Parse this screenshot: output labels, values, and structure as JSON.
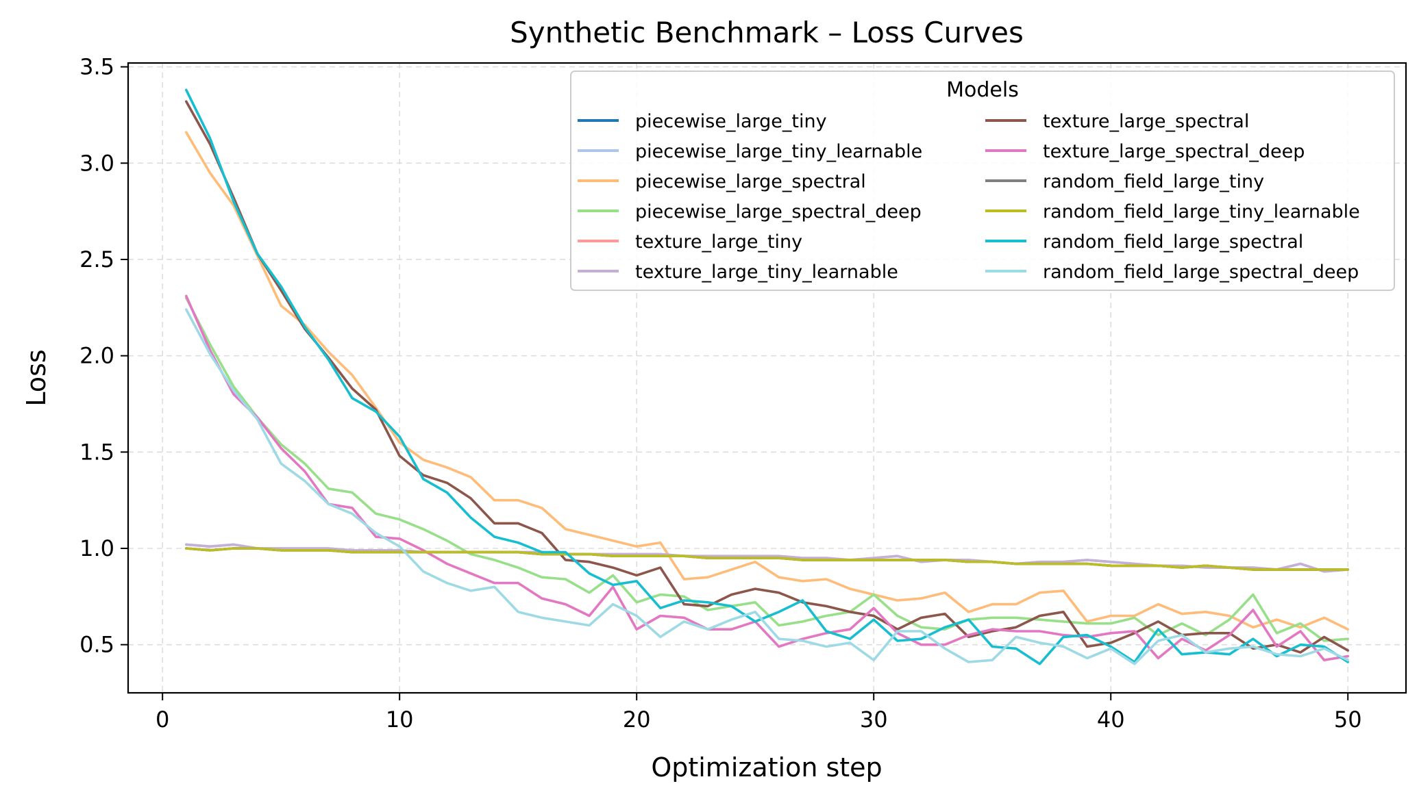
{
  "chart_data": {
    "type": "line",
    "title": "Synthetic Benchmark – Loss Curves",
    "xlabel": "Optimization step",
    "ylabel": "Loss",
    "xlim": [
      -1.45,
      52.45
    ],
    "ylim": [
      0.25,
      3.52
    ],
    "xticks": [
      0,
      10,
      20,
      30,
      40,
      50
    ],
    "yticks": [
      0.5,
      1.0,
      1.5,
      2.0,
      2.5,
      3.0,
      3.5
    ],
    "xtick_labels": [
      "0",
      "10",
      "20",
      "30",
      "40",
      "50"
    ],
    "ytick_labels": [
      "0.5",
      "1.0",
      "1.5",
      "2.0",
      "2.5",
      "3.0",
      "3.5"
    ],
    "grid": true,
    "legend": {
      "title": "Models",
      "location": "top-right",
      "columns": 2
    },
    "x": [
      1,
      2,
      3,
      4,
      5,
      6,
      7,
      8,
      9,
      10,
      11,
      12,
      13,
      14,
      15,
      16,
      17,
      18,
      19,
      20,
      21,
      22,
      23,
      24,
      25,
      26,
      27,
      28,
      29,
      30,
      31,
      32,
      33,
      34,
      35,
      36,
      37,
      38,
      39,
      40,
      41,
      42,
      43,
      44,
      45,
      46,
      47,
      48,
      49,
      50
    ],
    "series": [
      {
        "name": "piecewise_large_tiny",
        "color": "#1f77b4",
        "values": [
          1.0,
          0.99,
          1.0,
          1.0,
          0.99,
          0.99,
          0.99,
          0.98,
          0.98,
          0.98,
          0.98,
          0.98,
          0.98,
          0.98,
          0.98,
          0.97,
          0.97,
          0.97,
          0.96,
          0.96,
          0.96,
          0.96,
          0.95,
          0.95,
          0.95,
          0.95,
          0.94,
          0.94,
          0.94,
          0.94,
          0.94,
          0.94,
          0.94,
          0.93,
          0.93,
          0.92,
          0.92,
          0.92,
          0.92,
          0.91,
          0.91,
          0.91,
          0.9,
          0.91,
          0.9,
          0.89,
          0.89,
          0.89,
          0.89,
          0.89
        ]
      },
      {
        "name": "piecewise_large_tiny_learnable",
        "color": "#aec7e8",
        "values": [
          1.02,
          1.01,
          1.02,
          1.0,
          1.0,
          1.0,
          1.0,
          0.99,
          0.99,
          0.99,
          0.98,
          0.98,
          0.98,
          0.98,
          0.98,
          0.98,
          0.97,
          0.97,
          0.97,
          0.97,
          0.97,
          0.96,
          0.96,
          0.96,
          0.96,
          0.96,
          0.95,
          0.95,
          0.94,
          0.95,
          0.96,
          0.93,
          0.94,
          0.94,
          0.93,
          0.92,
          0.93,
          0.93,
          0.94,
          0.93,
          0.92,
          0.91,
          0.91,
          0.9,
          0.9,
          0.9,
          0.89,
          0.92,
          0.88,
          0.89
        ]
      },
      {
        "name": "piecewise_large_spectral",
        "color": "#ffbb78",
        "values": [
          3.16,
          2.95,
          2.78,
          2.52,
          2.26,
          2.16,
          2.02,
          1.9,
          1.73,
          1.55,
          1.46,
          1.42,
          1.37,
          1.25,
          1.25,
          1.21,
          1.1,
          1.07,
          1.04,
          1.01,
          1.03,
          0.84,
          0.85,
          0.89,
          0.93,
          0.85,
          0.83,
          0.84,
          0.79,
          0.76,
          0.73,
          0.74,
          0.77,
          0.67,
          0.71,
          0.71,
          0.77,
          0.78,
          0.62,
          0.65,
          0.65,
          0.71,
          0.66,
          0.67,
          0.65,
          0.59,
          0.63,
          0.59,
          0.64,
          0.58
        ]
      },
      {
        "name": "piecewise_large_spectral_deep",
        "color": "#98df8a",
        "values": [
          2.3,
          2.06,
          1.84,
          1.68,
          1.54,
          1.44,
          1.31,
          1.29,
          1.18,
          1.15,
          1.1,
          1.04,
          0.97,
          0.94,
          0.9,
          0.85,
          0.84,
          0.77,
          0.86,
          0.72,
          0.76,
          0.75,
          0.68,
          0.7,
          0.72,
          0.6,
          0.62,
          0.65,
          0.67,
          0.76,
          0.65,
          0.59,
          0.58,
          0.63,
          0.64,
          0.64,
          0.63,
          0.62,
          0.61,
          0.61,
          0.64,
          0.55,
          0.61,
          0.55,
          0.63,
          0.76,
          0.56,
          0.61,
          0.52,
          0.53
        ]
      },
      {
        "name": "texture_large_tiny",
        "color": "#ff9896",
        "values": [
          1.0,
          0.99,
          1.0,
          1.0,
          0.99,
          0.99,
          0.99,
          0.98,
          0.98,
          0.98,
          0.98,
          0.98,
          0.98,
          0.98,
          0.98,
          0.97,
          0.97,
          0.97,
          0.96,
          0.96,
          0.96,
          0.96,
          0.95,
          0.95,
          0.95,
          0.95,
          0.94,
          0.94,
          0.94,
          0.94,
          0.94,
          0.94,
          0.94,
          0.93,
          0.93,
          0.92,
          0.92,
          0.92,
          0.92,
          0.91,
          0.91,
          0.91,
          0.9,
          0.91,
          0.9,
          0.89,
          0.89,
          0.89,
          0.89,
          0.89
        ]
      },
      {
        "name": "texture_large_tiny_learnable",
        "color": "#c5b0d5",
        "values": [
          1.02,
          1.01,
          1.02,
          1.0,
          1.0,
          1.0,
          1.0,
          0.99,
          0.99,
          0.99,
          0.98,
          0.98,
          0.98,
          0.98,
          0.98,
          0.98,
          0.97,
          0.97,
          0.97,
          0.97,
          0.97,
          0.96,
          0.96,
          0.96,
          0.96,
          0.96,
          0.95,
          0.95,
          0.94,
          0.95,
          0.96,
          0.93,
          0.94,
          0.94,
          0.93,
          0.92,
          0.93,
          0.93,
          0.94,
          0.93,
          0.92,
          0.91,
          0.91,
          0.9,
          0.9,
          0.9,
          0.89,
          0.92,
          0.88,
          0.89
        ]
      },
      {
        "name": "texture_large_spectral",
        "color": "#8c564b",
        "values": [
          3.32,
          3.1,
          2.82,
          2.53,
          2.34,
          2.14,
          1.99,
          1.83,
          1.72,
          1.48,
          1.38,
          1.34,
          1.26,
          1.13,
          1.13,
          1.08,
          0.94,
          0.93,
          0.9,
          0.86,
          0.9,
          0.71,
          0.7,
          0.76,
          0.79,
          0.77,
          0.72,
          0.7,
          0.67,
          0.65,
          0.58,
          0.64,
          0.66,
          0.54,
          0.57,
          0.59,
          0.65,
          0.67,
          0.49,
          0.51,
          0.56,
          0.62,
          0.55,
          0.56,
          0.56,
          0.48,
          0.5,
          0.46,
          0.54,
          0.47
        ]
      },
      {
        "name": "texture_large_spectral_deep",
        "color": "#e377c2",
        "values": [
          2.31,
          2.03,
          1.8,
          1.68,
          1.52,
          1.4,
          1.23,
          1.21,
          1.06,
          1.05,
          0.99,
          0.92,
          0.87,
          0.82,
          0.82,
          0.74,
          0.71,
          0.65,
          0.8,
          0.58,
          0.65,
          0.64,
          0.58,
          0.58,
          0.62,
          0.49,
          0.53,
          0.56,
          0.58,
          0.69,
          0.56,
          0.5,
          0.5,
          0.55,
          0.58,
          0.57,
          0.57,
          0.55,
          0.54,
          0.56,
          0.57,
          0.43,
          0.53,
          0.47,
          0.55,
          0.68,
          0.49,
          0.57,
          0.42,
          0.44
        ]
      },
      {
        "name": "random_field_large_tiny",
        "color": "#7f7f7f",
        "values": [
          1.0,
          0.99,
          1.0,
          1.0,
          0.99,
          0.99,
          0.99,
          0.98,
          0.98,
          0.98,
          0.98,
          0.98,
          0.98,
          0.98,
          0.98,
          0.97,
          0.97,
          0.97,
          0.96,
          0.96,
          0.96,
          0.96,
          0.95,
          0.95,
          0.95,
          0.95,
          0.94,
          0.94,
          0.94,
          0.94,
          0.94,
          0.94,
          0.94,
          0.93,
          0.93,
          0.92,
          0.92,
          0.92,
          0.92,
          0.91,
          0.91,
          0.91,
          0.9,
          0.91,
          0.9,
          0.89,
          0.89,
          0.89,
          0.89,
          0.89
        ]
      },
      {
        "name": "random_field_large_tiny_learnable",
        "color": "#bcbd22",
        "values": [
          1.0,
          0.99,
          1.0,
          1.0,
          0.99,
          0.99,
          0.99,
          0.98,
          0.98,
          0.98,
          0.98,
          0.98,
          0.98,
          0.98,
          0.98,
          0.97,
          0.97,
          0.97,
          0.96,
          0.96,
          0.96,
          0.96,
          0.95,
          0.95,
          0.95,
          0.95,
          0.94,
          0.94,
          0.94,
          0.94,
          0.94,
          0.94,
          0.94,
          0.93,
          0.93,
          0.92,
          0.92,
          0.92,
          0.92,
          0.91,
          0.91,
          0.91,
          0.9,
          0.91,
          0.9,
          0.89,
          0.89,
          0.89,
          0.89,
          0.89
        ]
      },
      {
        "name": "random_field_large_spectral",
        "color": "#17becf",
        "values": [
          3.38,
          3.13,
          2.8,
          2.53,
          2.36,
          2.15,
          1.98,
          1.78,
          1.71,
          1.58,
          1.36,
          1.29,
          1.16,
          1.06,
          1.03,
          0.98,
          0.98,
          0.87,
          0.81,
          0.83,
          0.69,
          0.73,
          0.72,
          0.7,
          0.62,
          0.67,
          0.73,
          0.57,
          0.53,
          0.63,
          0.52,
          0.53,
          0.59,
          0.63,
          0.49,
          0.48,
          0.4,
          0.54,
          0.55,
          0.49,
          0.41,
          0.58,
          0.45,
          0.46,
          0.45,
          0.53,
          0.44,
          0.5,
          0.49,
          0.41
        ]
      },
      {
        "name": "random_field_large_spectral_deep",
        "color": "#9edae5",
        "values": [
          2.24,
          2.01,
          1.82,
          1.67,
          1.44,
          1.35,
          1.23,
          1.18,
          1.08,
          1.01,
          0.88,
          0.82,
          0.78,
          0.8,
          0.67,
          0.64,
          0.62,
          0.6,
          0.71,
          0.65,
          0.54,
          0.62,
          0.58,
          0.63,
          0.67,
          0.53,
          0.52,
          0.49,
          0.51,
          0.42,
          0.57,
          0.57,
          0.48,
          0.41,
          0.42,
          0.54,
          0.51,
          0.49,
          0.43,
          0.48,
          0.4,
          0.52,
          0.55,
          0.46,
          0.48,
          0.49,
          0.45,
          0.44,
          0.48,
          0.42
        ]
      }
    ]
  }
}
